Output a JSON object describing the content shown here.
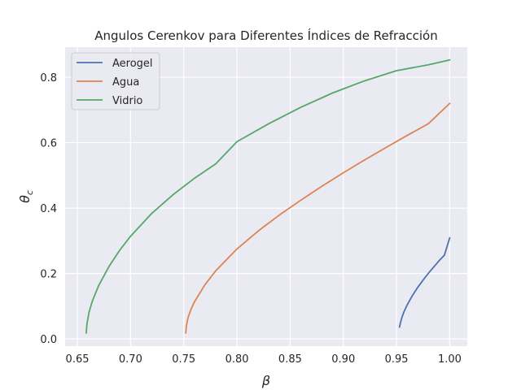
{
  "chart_data": {
    "type": "line",
    "title": "Angulos Cerenkov para Diferentes Índices de Refracción",
    "xlabel": "β",
    "ylabel": "θc",
    "ylabel_main": "θ",
    "ylabel_sub": "c",
    "xlim": [
      0.6385,
      1.0165
    ],
    "ylim": [
      -0.022,
      0.892
    ],
    "xticks": [
      0.65,
      0.7,
      0.75,
      0.8,
      0.85,
      0.9,
      0.95,
      1.0
    ],
    "xtick_labels": [
      "0.65",
      "0.70",
      "0.75",
      "0.80",
      "0.85",
      "0.90",
      "0.95",
      "1.00"
    ],
    "yticks": [
      0.0,
      0.2,
      0.4,
      0.6,
      0.8
    ],
    "ytick_labels": [
      "0.0",
      "0.2",
      "0.4",
      "0.6",
      "0.8"
    ],
    "grid": true,
    "legend_position": "top-left",
    "series": [
      {
        "name": "Aerogel",
        "color": "#4c72b0",
        "x": [
          0.9528,
          0.9535,
          0.955,
          0.957,
          0.96,
          0.965,
          0.97,
          0.975,
          0.98,
          0.985,
          0.99,
          0.995,
          1.0
        ],
        "y": [
          0.036,
          0.047,
          0.065,
          0.083,
          0.104,
          0.133,
          0.158,
          0.18,
          0.201,
          0.22,
          0.239,
          0.256,
          0.309
        ]
      },
      {
        "name": "Agua",
        "color": "#dd8452",
        "x": [
          0.7519,
          0.7525,
          0.754,
          0.757,
          0.76,
          0.77,
          0.78,
          0.8,
          0.82,
          0.84,
          0.86,
          0.88,
          0.9,
          0.92,
          0.94,
          0.96,
          0.98,
          1.0
        ],
        "y": [
          0.018,
          0.04,
          0.065,
          0.092,
          0.113,
          0.166,
          0.208,
          0.275,
          0.33,
          0.379,
          0.424,
          0.467,
          0.508,
          0.547,
          0.585,
          0.622,
          0.658,
          0.72
        ]
      },
      {
        "name": "Vidrio",
        "color": "#55a868",
        "x": [
          0.6583,
          0.659,
          0.661,
          0.664,
          0.67,
          0.68,
          0.69,
          0.7,
          0.72,
          0.74,
          0.76,
          0.78,
          0.8,
          0.83,
          0.86,
          0.89,
          0.92,
          0.95,
          0.98,
          1.0
        ],
        "y": [
          0.018,
          0.045,
          0.082,
          0.115,
          0.163,
          0.223,
          0.272,
          0.314,
          0.384,
          0.441,
          0.491,
          0.535,
          0.603,
          0.658,
          0.708,
          0.752,
          0.789,
          0.82,
          0.838,
          0.853
        ]
      }
    ]
  }
}
